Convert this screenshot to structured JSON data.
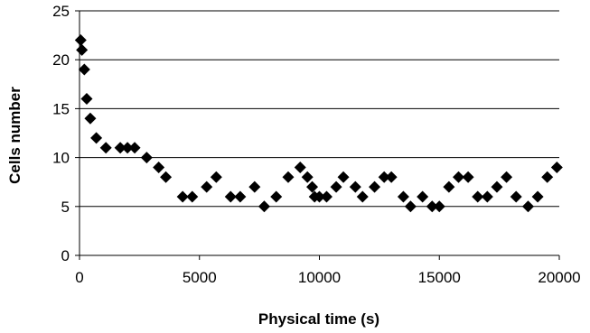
{
  "chart_data": {
    "type": "scatter",
    "xlabel": "Physical time (s)",
    "ylabel": "Cells number",
    "xlim": [
      0,
      20000
    ],
    "ylim": [
      0,
      25
    ],
    "xticks": [
      0,
      5000,
      10000,
      15000,
      20000
    ],
    "yticks": [
      0,
      5,
      10,
      15,
      20,
      25
    ],
    "grid": "horizontal",
    "marker": "diamond",
    "colors": {
      "marker": "#000000",
      "grid": "#000000",
      "background": "#ffffff"
    },
    "series": [
      {
        "points": [
          [
            50,
            22
          ],
          [
            100,
            21
          ],
          [
            200,
            19
          ],
          [
            300,
            16
          ],
          [
            450,
            14
          ],
          [
            700,
            12
          ],
          [
            1100,
            11
          ],
          [
            1700,
            11
          ],
          [
            2000,
            11
          ],
          [
            2300,
            11
          ],
          [
            2800,
            10
          ],
          [
            3300,
            9
          ],
          [
            3600,
            8
          ],
          [
            4300,
            6
          ],
          [
            4700,
            6
          ],
          [
            5300,
            7
          ],
          [
            5700,
            8
          ],
          [
            6300,
            6
          ],
          [
            6700,
            6
          ],
          [
            7300,
            7
          ],
          [
            7700,
            5
          ],
          [
            8200,
            6
          ],
          [
            8700,
            8
          ],
          [
            9200,
            9
          ],
          [
            9500,
            8
          ],
          [
            9700,
            7
          ],
          [
            9800,
            6
          ],
          [
            10000,
            6
          ],
          [
            10300,
            6
          ],
          [
            10700,
            7
          ],
          [
            11000,
            8
          ],
          [
            11500,
            7
          ],
          [
            11800,
            6
          ],
          [
            12300,
            7
          ],
          [
            12700,
            8
          ],
          [
            13000,
            8
          ],
          [
            13500,
            6
          ],
          [
            13800,
            5
          ],
          [
            14300,
            6
          ],
          [
            14700,
            5
          ],
          [
            15000,
            5
          ],
          [
            15400,
            7
          ],
          [
            15800,
            8
          ],
          [
            16200,
            8
          ],
          [
            16600,
            6
          ],
          [
            17000,
            6
          ],
          [
            17400,
            7
          ],
          [
            17800,
            8
          ],
          [
            18200,
            6
          ],
          [
            18700,
            5
          ],
          [
            19100,
            6
          ],
          [
            19500,
            8
          ],
          [
            19900,
            9
          ]
        ]
      }
    ]
  }
}
